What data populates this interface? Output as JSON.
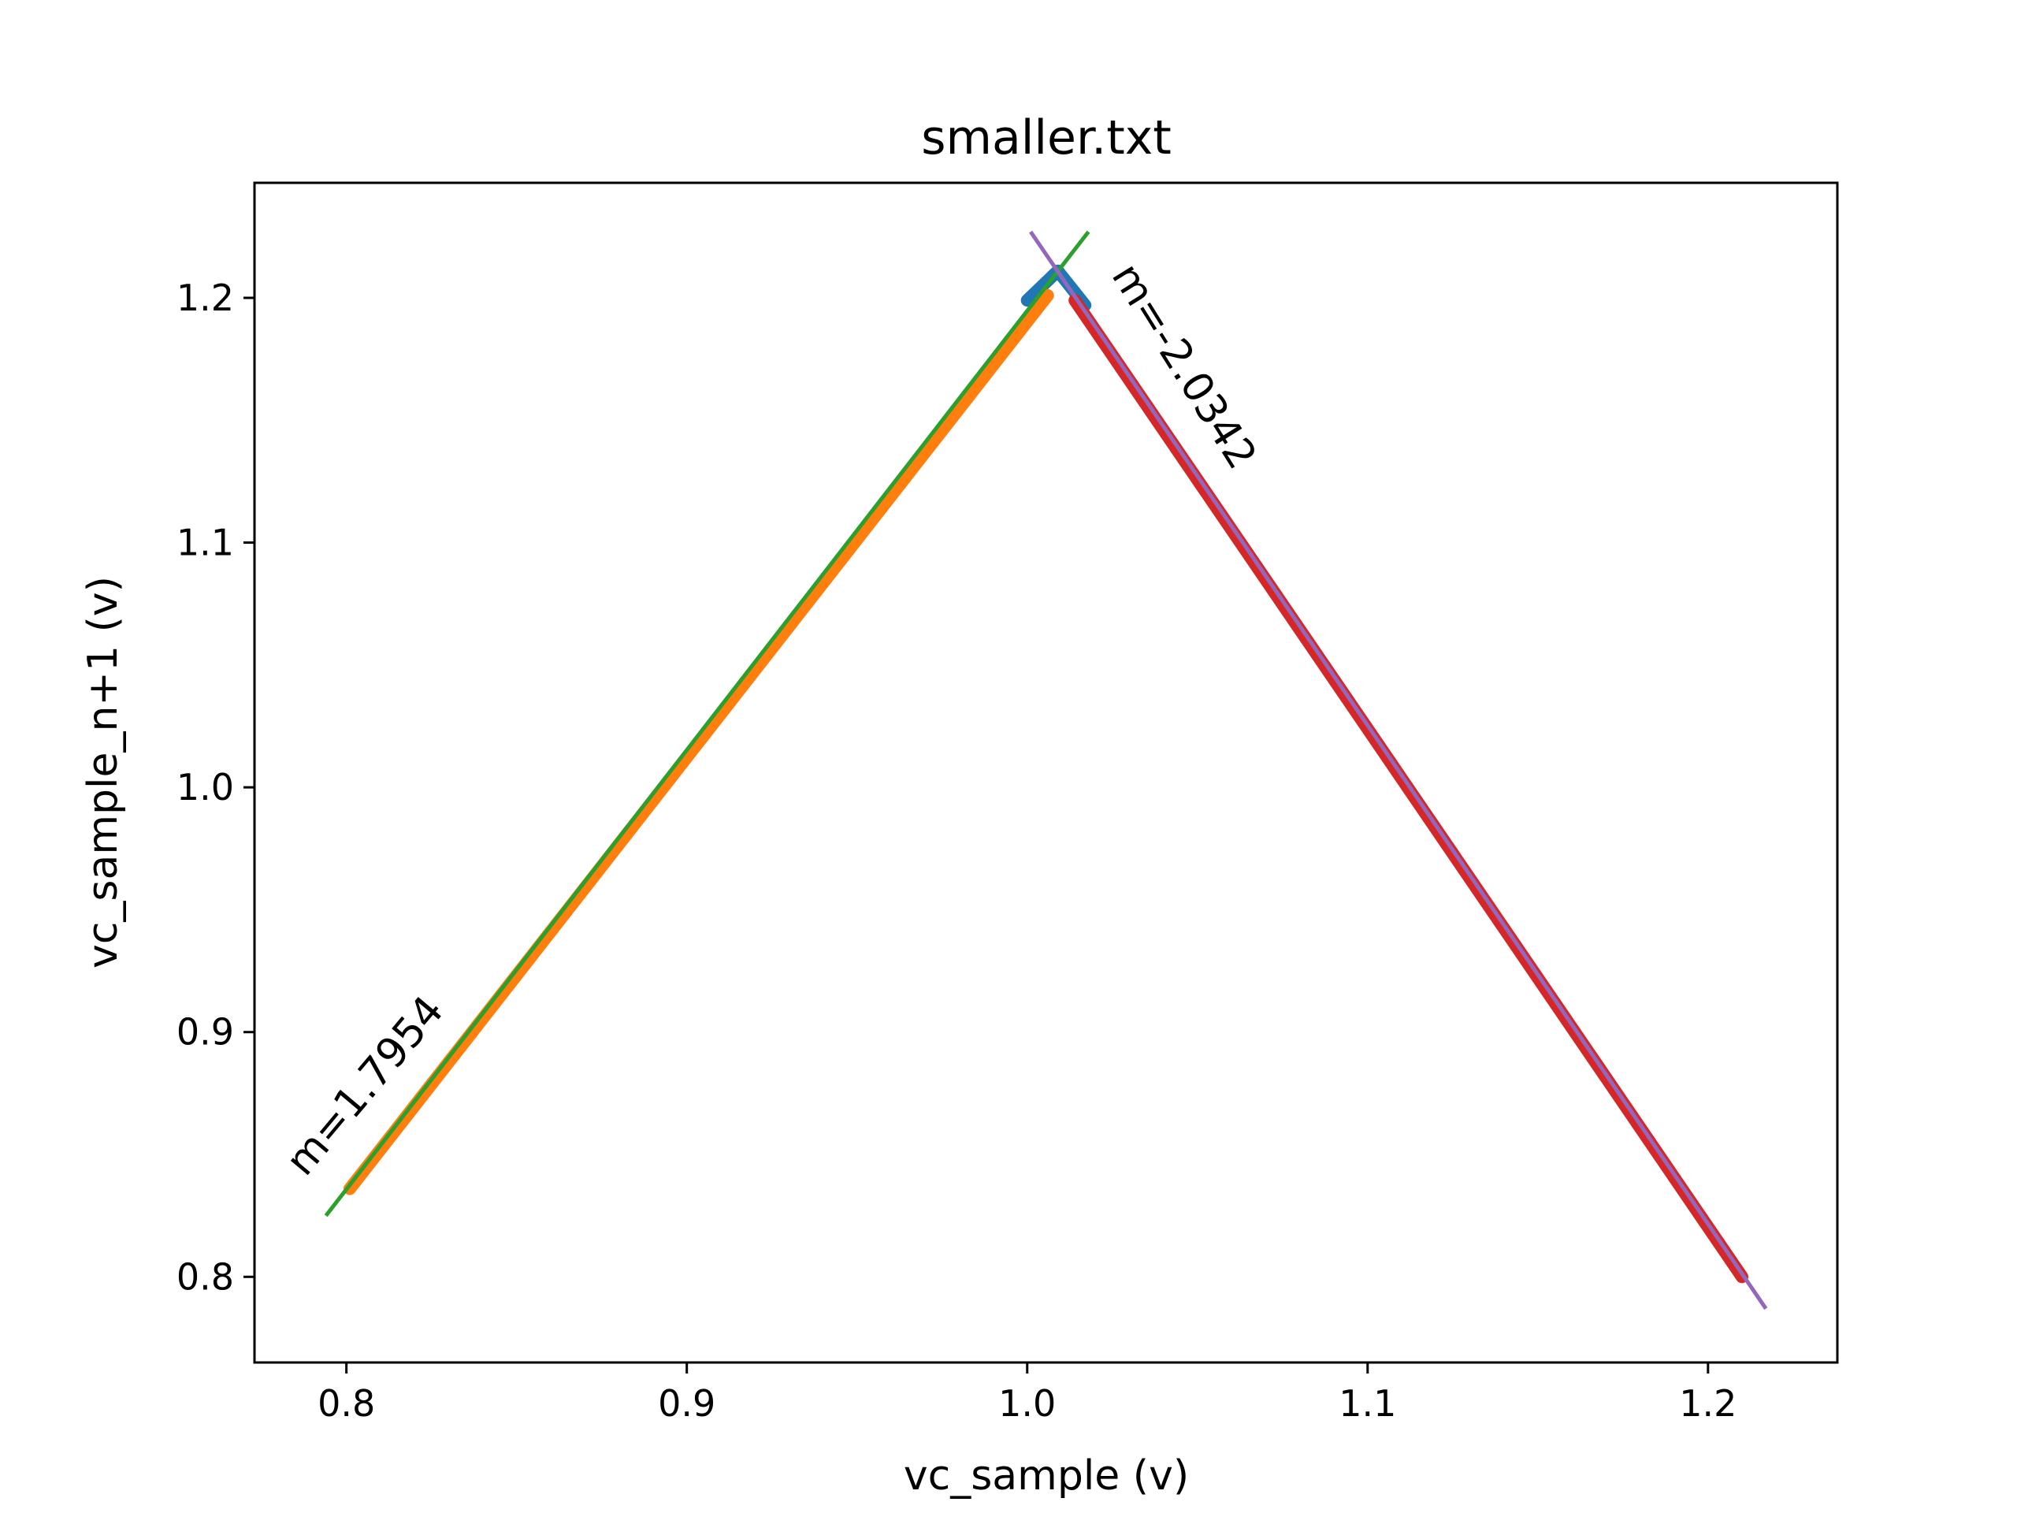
{
  "chart_data": {
    "type": "line",
    "title": "smaller.txt",
    "xlabel": "vc_sample (v)",
    "ylabel": "vc_sample_n+1 (v)",
    "xlim": [
      0.773,
      1.238
    ],
    "ylim": [
      0.765,
      1.247
    ],
    "xticks": [
      {
        "value": 0.8,
        "label": "0.8"
      },
      {
        "value": 0.9,
        "label": "0.9"
      },
      {
        "value": 1.0,
        "label": "1.0"
      },
      {
        "value": 1.1,
        "label": "1.1"
      },
      {
        "value": 1.2,
        "label": "1.2"
      }
    ],
    "yticks": [
      {
        "value": 0.8,
        "label": "0.8"
      },
      {
        "value": 0.9,
        "label": "0.9"
      },
      {
        "value": 1.0,
        "label": "1.0"
      },
      {
        "value": 1.1,
        "label": "1.1"
      },
      {
        "value": 1.2,
        "label": "1.2"
      }
    ],
    "grid": false,
    "legend": "none",
    "series": [
      {
        "kind": "data",
        "color": "#1f77b4",
        "x": [
          1.0,
          1.009,
          1.017
        ],
        "y": [
          1.199,
          1.211,
          1.197
        ]
      },
      {
        "kind": "data",
        "color": "#ff7f0e",
        "x": [
          0.801,
          1.006
        ],
        "y": [
          0.836,
          1.201
        ]
      },
      {
        "kind": "fit",
        "color": "#2ca02c",
        "x": [
          0.794,
          1.018
        ],
        "y": [
          0.825,
          1.227
        ]
      },
      {
        "kind": "data",
        "color": "#d62728",
        "x": [
          1.014,
          1.21
        ],
        "y": [
          1.199,
          0.8
        ]
      },
      {
        "kind": "fit",
        "color": "#9467bd",
        "x": [
          1.001,
          1.217
        ],
        "y": [
          1.227,
          0.787
        ]
      }
    ],
    "annotations": [
      {
        "text": "m=1.7954",
        "x": 0.8055,
        "y": 0.878,
        "angle": -50
      },
      {
        "text": "m=-2.0342",
        "x": 1.046,
        "y": 1.172,
        "angle": 58
      }
    ]
  }
}
